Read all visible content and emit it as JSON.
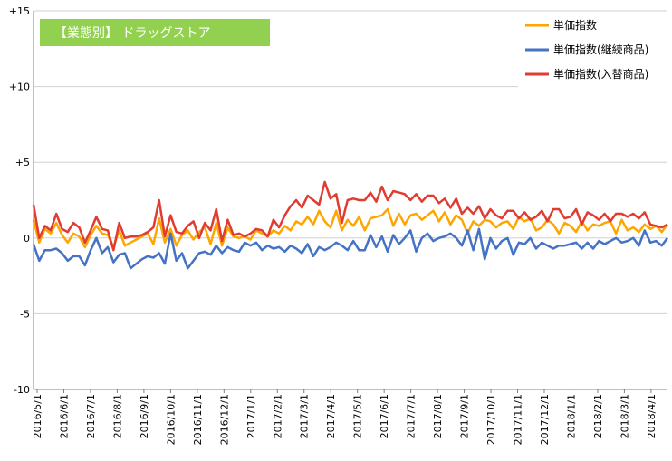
{
  "chart_data": {
    "type": "line",
    "title": "【業態別】 ドラッグストア",
    "title_box_color": "#92D050",
    "ylim": [
      -10,
      15
    ],
    "y_ticks": [
      {
        "value": 15,
        "label": "+15"
      },
      {
        "value": 10,
        "label": "+10"
      },
      {
        "value": 5,
        "label": "+5"
      },
      {
        "value": 0,
        "label": "0"
      },
      {
        "value": -5,
        "label": "-5"
      },
      {
        "value": -10,
        "label": "-10"
      }
    ],
    "x_ticks": [
      "2016/5/1",
      "2016/6/1",
      "2016/7/1",
      "2016/8/1",
      "2016/9/1",
      "2016/10/1",
      "2016/11/1",
      "2016/12/1",
      "2017/1/1",
      "2017/2/1",
      "2017/3/1",
      "2017/4/1",
      "2017/5/1",
      "2017/6/1",
      "2017/7/1",
      "2017/8/1",
      "2017/9/1",
      "2017/10/1",
      "2017/11/1",
      "2017/12/1",
      "2018/1/1",
      "2018/2/1",
      "2018/3/1",
      "2018/4/1"
    ],
    "grid": "horizontal",
    "legend_position": "top-right",
    "series": [
      {
        "name": "単価指数",
        "color": "#FFA500",
        "values": [
          1.2,
          -0.3,
          0.6,
          0.3,
          1.0,
          0.2,
          -0.3,
          0.3,
          0.1,
          -0.6,
          0.2,
          0.8,
          0.3,
          0.2,
          -0.6,
          0.5,
          -0.5,
          -0.3,
          -0.1,
          0.1,
          0.3,
          -0.4,
          1.3,
          -0.3,
          0.6,
          -0.5,
          0.2,
          0.5,
          -0.1,
          0.4,
          0.7,
          -0.4,
          1.0,
          -0.5,
          0.7,
          0.1,
          0.0,
          0.1,
          -0.1,
          0.5,
          0.3,
          0.1,
          0.5,
          0.3,
          0.8,
          0.5,
          1.1,
          0.9,
          1.4,
          0.9,
          1.8,
          1.1,
          0.7,
          1.8,
          0.5,
          1.2,
          0.8,
          1.4,
          0.5,
          1.3,
          1.4,
          1.5,
          1.9,
          0.8,
          1.6,
          0.9,
          1.5,
          1.6,
          1.2,
          1.5,
          1.8,
          1.1,
          1.7,
          0.9,
          1.5,
          1.2,
          0.3,
          1.1,
          0.8,
          1.2,
          1.1,
          0.7,
          1.0,
          1.1,
          0.6,
          1.4,
          1.1,
          1.3,
          0.5,
          0.7,
          1.2,
          0.9,
          0.3,
          1.0,
          0.8,
          0.4,
          1.1,
          0.5,
          0.9,
          0.8,
          1.0,
          1.1,
          0.3,
          1.2,
          0.5,
          0.7,
          0.4,
          0.9,
          0.6,
          0.8,
          0.4,
          0.9
        ]
      },
      {
        "name": "単価指数(継続商品)",
        "color": "#4472C4",
        "values": [
          -0.4,
          -1.5,
          -0.8,
          -0.8,
          -0.7,
          -1.0,
          -1.5,
          -1.2,
          -1.2,
          -1.8,
          -0.8,
          0.0,
          -1.0,
          -0.6,
          -1.6,
          -1.1,
          -1.0,
          -2.0,
          -1.7,
          -1.4,
          -1.2,
          -1.3,
          -1.0,
          -1.7,
          0.3,
          -1.5,
          -1.0,
          -2.0,
          -1.5,
          -1.0,
          -0.9,
          -1.1,
          -0.5,
          -1.0,
          -0.6,
          -0.8,
          -0.9,
          -0.3,
          -0.5,
          -0.3,
          -0.8,
          -0.5,
          -0.7,
          -0.6,
          -0.9,
          -0.5,
          -0.7,
          -1.0,
          -0.4,
          -1.2,
          -0.6,
          -0.8,
          -0.6,
          -0.3,
          -0.5,
          -0.8,
          -0.2,
          -0.8,
          -0.8,
          0.2,
          -0.6,
          0.1,
          -0.9,
          0.2,
          -0.4,
          0.0,
          0.5,
          -0.9,
          0.0,
          0.3,
          -0.2,
          0.0,
          0.1,
          0.3,
          0.0,
          -0.5,
          0.5,
          -0.8,
          0.6,
          -1.4,
          0.0,
          -0.7,
          -0.2,
          0.0,
          -1.1,
          -0.3,
          -0.4,
          0.0,
          -0.7,
          -0.3,
          -0.5,
          -0.7,
          -0.5,
          -0.5,
          -0.4,
          -0.3,
          -0.7,
          -0.3,
          -0.7,
          -0.2,
          -0.4,
          -0.2,
          0.0,
          -0.3,
          -0.2,
          0.0,
          -0.5,
          0.5,
          -0.3,
          -0.2,
          -0.5,
          0.0
        ]
      },
      {
        "name": "単価指数(入替商品)",
        "color": "#E03C31",
        "values": [
          2.2,
          0.0,
          0.8,
          0.5,
          1.6,
          0.6,
          0.4,
          1.0,
          0.7,
          -0.3,
          0.5,
          1.4,
          0.6,
          0.5,
          -0.8,
          1.0,
          0.0,
          0.1,
          0.1,
          0.2,
          0.4,
          0.7,
          2.5,
          0.1,
          1.5,
          0.4,
          0.3,
          0.8,
          1.1,
          0.0,
          1.0,
          0.5,
          1.9,
          -0.2,
          1.2,
          0.2,
          0.3,
          0.1,
          0.3,
          0.6,
          0.5,
          0.1,
          1.2,
          0.7,
          1.5,
          2.1,
          2.5,
          2.0,
          2.8,
          2.5,
          2.2,
          3.7,
          2.6,
          2.9,
          1.0,
          2.5,
          2.6,
          2.5,
          2.5,
          3.0,
          2.4,
          3.4,
          2.5,
          3.1,
          3.0,
          2.9,
          2.5,
          2.9,
          2.4,
          2.8,
          2.8,
          2.3,
          2.6,
          2.0,
          2.6,
          1.6,
          2.0,
          1.6,
          2.1,
          1.3,
          1.9,
          1.5,
          1.3,
          1.8,
          1.8,
          1.3,
          1.7,
          1.2,
          1.4,
          1.8,
          1.1,
          1.9,
          1.9,
          1.3,
          1.4,
          1.9,
          0.9,
          1.7,
          1.5,
          1.2,
          1.6,
          1.1,
          1.6,
          1.6,
          1.4,
          1.6,
          1.3,
          1.7,
          0.9,
          0.8,
          0.7,
          0.9
        ]
      }
    ]
  }
}
